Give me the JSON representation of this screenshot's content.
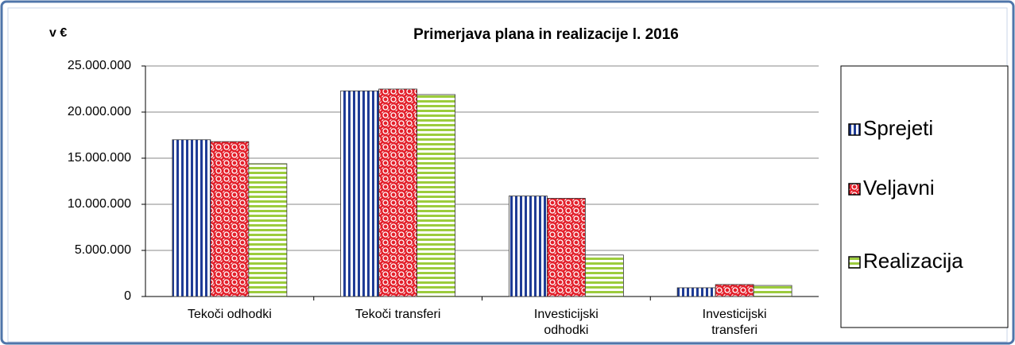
{
  "chart_data": {
    "type": "bar",
    "title": "Primerjava plana in realizacije l. 2016",
    "y_label": "v €",
    "categories": [
      "Tekoči odhodki",
      "Tekoči transferi",
      "Investicijski\nodhodki",
      "Investicijski\ntransferi"
    ],
    "series": [
      {
        "name": "Sprejeti",
        "color": "#1f3c96",
        "values": [
          17000000,
          22300000,
          10900000,
          950000
        ]
      },
      {
        "name": "Veljavni",
        "color": "#e3202b",
        "values": [
          16800000,
          22500000,
          10650000,
          1300000
        ]
      },
      {
        "name": "Realizacija",
        "color": "#9ccc3c",
        "values": [
          14400000,
          21900000,
          4500000,
          1200000
        ]
      }
    ],
    "ylim": [
      0,
      25000000
    ],
    "yticks": [
      {
        "value": 0,
        "label": "0"
      },
      {
        "value": 5000000,
        "label": "5.000.000"
      },
      {
        "value": 10000000,
        "label": "10.000.000"
      },
      {
        "value": 15000000,
        "label": "15.000.000"
      },
      {
        "value": 20000000,
        "label": "20.000.000"
      },
      {
        "value": 25000000,
        "label": "25.000.000"
      }
    ],
    "grid": true,
    "legend": "right"
  }
}
